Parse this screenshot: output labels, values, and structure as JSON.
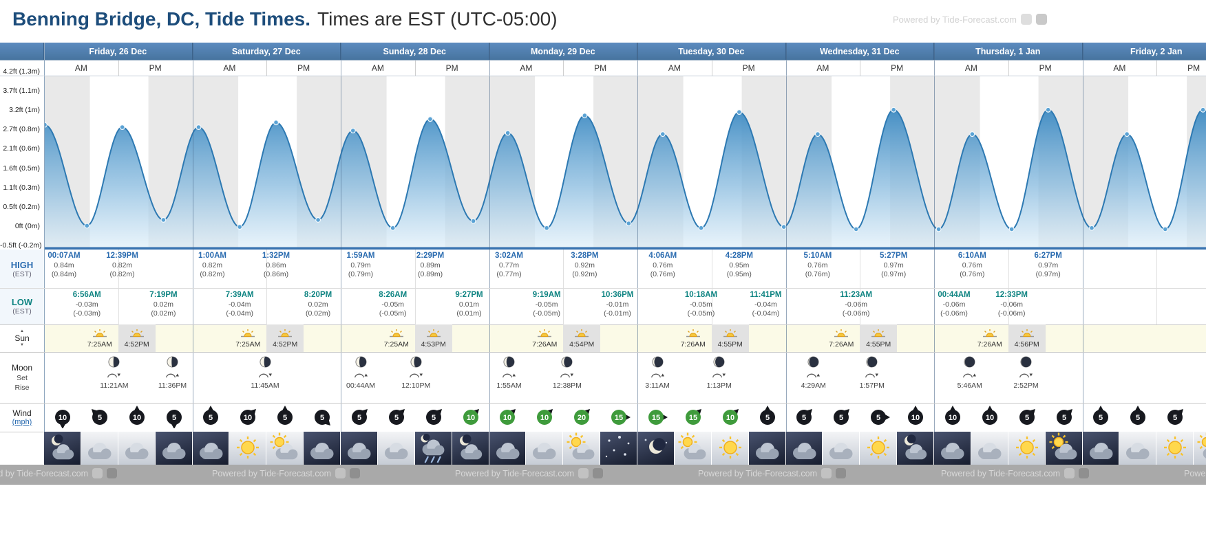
{
  "header": {
    "title_bold": "Benning Bridge, DC, Tide Times.",
    "title_rest": "Times are EST (UTC-05:00)",
    "watermark": "Powered by Tide-Forecast.com"
  },
  "ampm": {
    "am": "AM",
    "pm": "PM"
  },
  "days": [
    "Friday, 26 Dec",
    "Saturday, 27 Dec",
    "Sunday, 28 Dec",
    "Monday, 29 Dec",
    "Tuesday, 30 Dec",
    "Wednesday, 31 Dec",
    "Thursday, 1 Jan",
    "Friday, 2 Jan"
  ],
  "row_labels": {
    "high": "HIGH",
    "high_sub": "(EST)",
    "low": "LOW",
    "low_sub": "(EST)",
    "sun": "Sun",
    "moon": "Moon",
    "moon_set": "Set",
    "moon_rise": "Rise",
    "wind": "Wind",
    "wind_unit": "(mph)"
  },
  "icons": {
    "sunrise_arrow": "▲",
    "sunset_arrow": "▼"
  },
  "chart_data": {
    "type": "area",
    "title": "Tide height curve for Benning Bridge, DC",
    "x_unit": "hours from Friday 00:00",
    "y_unit": "m",
    "ylim_m": [
      -0.2,
      1.3
    ],
    "y_axis_labels": [
      "4.2ft (1.3m)",
      "3.7ft (1.1m)",
      "3.2ft (1m)",
      "2.7ft (0.8m)",
      "2.1ft (0.6m)",
      "1.6ft (0.5m)",
      "1.1ft (0.3m)",
      "0.5ft (0.2m)",
      "0ft (0m)",
      "-0.5ft (-0.2m)"
    ],
    "events": [
      {
        "day": 0,
        "time": "00:07AM",
        "type": "high",
        "height_m": 0.84
      },
      {
        "day": 0,
        "time": "6:56AM",
        "type": "low",
        "height_m": -0.03
      },
      {
        "day": 0,
        "time": "12:39PM",
        "type": "high",
        "height_m": 0.82
      },
      {
        "day": 0,
        "time": "7:19PM",
        "type": "low",
        "height_m": 0.02
      },
      {
        "day": 1,
        "time": "1:00AM",
        "type": "high",
        "height_m": 0.82
      },
      {
        "day": 1,
        "time": "7:39AM",
        "type": "low",
        "height_m": -0.04
      },
      {
        "day": 1,
        "time": "1:32PM",
        "type": "high",
        "height_m": 0.86
      },
      {
        "day": 1,
        "time": "8:20PM",
        "type": "low",
        "height_m": 0.02
      },
      {
        "day": 2,
        "time": "1:59AM",
        "type": "high",
        "height_m": 0.79
      },
      {
        "day": 2,
        "time": "8:26AM",
        "type": "low",
        "height_m": -0.05
      },
      {
        "day": 2,
        "time": "2:29PM",
        "type": "high",
        "height_m": 0.89
      },
      {
        "day": 2,
        "time": "9:27PM",
        "type": "low",
        "height_m": 0.01
      },
      {
        "day": 3,
        "time": "3:02AM",
        "type": "high",
        "height_m": 0.77
      },
      {
        "day": 3,
        "time": "9:19AM",
        "type": "low",
        "height_m": -0.05
      },
      {
        "day": 3,
        "time": "3:28PM",
        "type": "high",
        "height_m": 0.92
      },
      {
        "day": 3,
        "time": "10:36PM",
        "type": "low",
        "height_m": -0.01
      },
      {
        "day": 4,
        "time": "4:06AM",
        "type": "high",
        "height_m": 0.76
      },
      {
        "day": 4,
        "time": "10:18AM",
        "type": "low",
        "height_m": -0.05
      },
      {
        "day": 4,
        "time": "4:28PM",
        "type": "high",
        "height_m": 0.95
      },
      {
        "day": 4,
        "time": "11:41PM",
        "type": "low",
        "height_m": -0.04
      },
      {
        "day": 5,
        "time": "5:10AM",
        "type": "high",
        "height_m": 0.76
      },
      {
        "day": 5,
        "time": "11:23AM",
        "type": "low",
        "height_m": -0.06
      },
      {
        "day": 5,
        "time": "5:27PM",
        "type": "high",
        "height_m": 0.97
      },
      {
        "day": 6,
        "time": "00:44AM",
        "type": "low",
        "height_m": -0.06
      },
      {
        "day": 6,
        "time": "6:10AM",
        "type": "high",
        "height_m": 0.76
      },
      {
        "day": 6,
        "time": "12:33PM",
        "type": "low",
        "height_m": -0.06
      },
      {
        "day": 6,
        "time": "6:27PM",
        "type": "high",
        "height_m": 0.97
      }
    ],
    "extrapolated_curve_points": [
      {
        "t": -5.6,
        "h": -0.02
      },
      {
        "t": 169.5,
        "h": -0.05
      },
      {
        "t": 175.2,
        "h": 0.76
      },
      {
        "t": 181.4,
        "h": -0.06
      },
      {
        "t": 187.5,
        "h": 0.97
      },
      {
        "t": 193.5,
        "h": -0.05
      }
    ]
  },
  "sun_times": [
    {
      "rise": "7:25AM",
      "set": "4:52PM"
    },
    {
      "rise": "7:25AM",
      "set": "4:52PM"
    },
    {
      "rise": "7:25AM",
      "set": "4:53PM"
    },
    {
      "rise": "7:26AM",
      "set": "4:54PM"
    },
    {
      "rise": "7:26AM",
      "set": "4:55PM"
    },
    {
      "rise": "7:26AM",
      "set": "4:55PM"
    },
    {
      "rise": "7:26AM",
      "set": "4:56PM"
    }
  ],
  "moon_events": [
    {
      "day": 0,
      "time": "11:21AM",
      "event": "set",
      "phase_lit": 0.45
    },
    {
      "day": 0,
      "time": "11:36PM",
      "event": "rise",
      "phase_lit": 0.42
    },
    {
      "day": 1,
      "time": "11:45AM",
      "event": "set",
      "phase_lit": 0.38
    },
    {
      "day": 2,
      "time": "00:44AM",
      "event": "rise",
      "phase_lit": 0.33
    },
    {
      "day": 2,
      "time": "12:10PM",
      "event": "set",
      "phase_lit": 0.3
    },
    {
      "day": 3,
      "time": "1:55AM",
      "event": "rise",
      "phase_lit": 0.25
    },
    {
      "day": 3,
      "time": "12:38PM",
      "event": "set",
      "phase_lit": 0.22
    },
    {
      "day": 4,
      "time": "3:11AM",
      "event": "rise",
      "phase_lit": 0.17
    },
    {
      "day": 4,
      "time": "1:13PM",
      "event": "set",
      "phase_lit": 0.14
    },
    {
      "day": 5,
      "time": "4:29AM",
      "event": "rise",
      "phase_lit": 0.1
    },
    {
      "day": 5,
      "time": "1:57PM",
      "event": "set",
      "phase_lit": 0.08
    },
    {
      "day": 6,
      "time": "5:46AM",
      "event": "rise",
      "phase_lit": 0.05
    },
    {
      "day": 6,
      "time": "2:52PM",
      "event": "set",
      "phase_lit": 0.04
    }
  ],
  "wind": [
    {
      "speed": 10,
      "dir": 180,
      "color": "dark"
    },
    {
      "speed": 5,
      "dir": 315,
      "color": "dark"
    },
    {
      "speed": 10,
      "dir": 0,
      "color": "dark"
    },
    {
      "speed": 5,
      "dir": 180,
      "color": "dark"
    },
    {
      "speed": 5,
      "dir": 0,
      "color": "dark"
    },
    {
      "speed": 10,
      "dir": 45,
      "color": "dark"
    },
    {
      "speed": 5,
      "dir": 0,
      "color": "dark"
    },
    {
      "speed": 5,
      "dir": 135,
      "color": "dark"
    },
    {
      "speed": 5,
      "dir": 45,
      "color": "dark"
    },
    {
      "speed": 5,
      "dir": 45,
      "color": "dark"
    },
    {
      "speed": 5,
      "dir": 45,
      "color": "dark"
    },
    {
      "speed": 10,
      "dir": 45,
      "color": "green"
    },
    {
      "speed": 10,
      "dir": 45,
      "color": "green"
    },
    {
      "speed": 10,
      "dir": 45,
      "color": "green"
    },
    {
      "speed": 20,
      "dir": 45,
      "color": "green"
    },
    {
      "speed": 15,
      "dir": 90,
      "color": "green"
    },
    {
      "speed": 15,
      "dir": 90,
      "color": "green"
    },
    {
      "speed": 15,
      "dir": 45,
      "color": "green"
    },
    {
      "speed": 10,
      "dir": 45,
      "color": "green"
    },
    {
      "speed": 5,
      "dir": 0,
      "color": "dark"
    },
    {
      "speed": 5,
      "dir": 45,
      "color": "dark"
    },
    {
      "speed": 5,
      "dir": 45,
      "color": "dark"
    },
    {
      "speed": 5,
      "dir": 90,
      "color": "dark"
    },
    {
      "speed": 10,
      "dir": 0,
      "color": "dark"
    },
    {
      "speed": 10,
      "dir": 0,
      "color": "dark"
    },
    {
      "speed": 10,
      "dir": 0,
      "color": "dark"
    },
    {
      "speed": 5,
      "dir": 45,
      "color": "dark"
    },
    {
      "speed": 5,
      "dir": 45,
      "color": "dark"
    },
    {
      "speed": 5,
      "dir": 0,
      "color": "dark"
    },
    {
      "speed": 5,
      "dir": 0,
      "color": "dark"
    },
    {
      "speed": 5,
      "dir": 45,
      "color": "dark"
    }
  ],
  "weather": [
    {
      "type": "moon-cloud",
      "night": true
    },
    {
      "type": "cloud",
      "night": false
    },
    {
      "type": "cloud",
      "night": false
    },
    {
      "type": "cloud",
      "night": true
    },
    {
      "type": "cloud",
      "night": true
    },
    {
      "type": "sun",
      "night": false
    },
    {
      "type": "sun-cloud",
      "night": false
    },
    {
      "type": "cloud",
      "night": true
    },
    {
      "type": "cloud",
      "night": true
    },
    {
      "type": "cloud",
      "night": false
    },
    {
      "type": "rain",
      "night": true
    },
    {
      "type": "moon-cloud",
      "night": true
    },
    {
      "type": "cloud",
      "night": true
    },
    {
      "type": "cloud",
      "night": false
    },
    {
      "type": "sun-cloud",
      "night": false
    },
    {
      "type": "stars",
      "night": true
    },
    {
      "type": "moon",
      "night": true
    },
    {
      "type": "sun-cloud",
      "night": false
    },
    {
      "type": "sun",
      "night": false
    },
    {
      "type": "cloud",
      "night": true
    },
    {
      "type": "cloud",
      "night": true
    },
    {
      "type": "cloud",
      "night": false
    },
    {
      "type": "sun",
      "night": false
    },
    {
      "type": "moon-cloud",
      "night": true
    },
    {
      "type": "cloud",
      "night": true
    },
    {
      "type": "cloud",
      "night": false
    },
    {
      "type": "sun",
      "night": false
    },
    {
      "type": "sun-cloud",
      "night": true
    },
    {
      "type": "cloud",
      "night": true
    },
    {
      "type": "cloud",
      "night": false
    },
    {
      "type": "sun",
      "night": false
    },
    {
      "type": "sun-cloud",
      "night": false
    }
  ],
  "footer": {
    "watermark": "Powered by Tide-Forecast.com"
  }
}
